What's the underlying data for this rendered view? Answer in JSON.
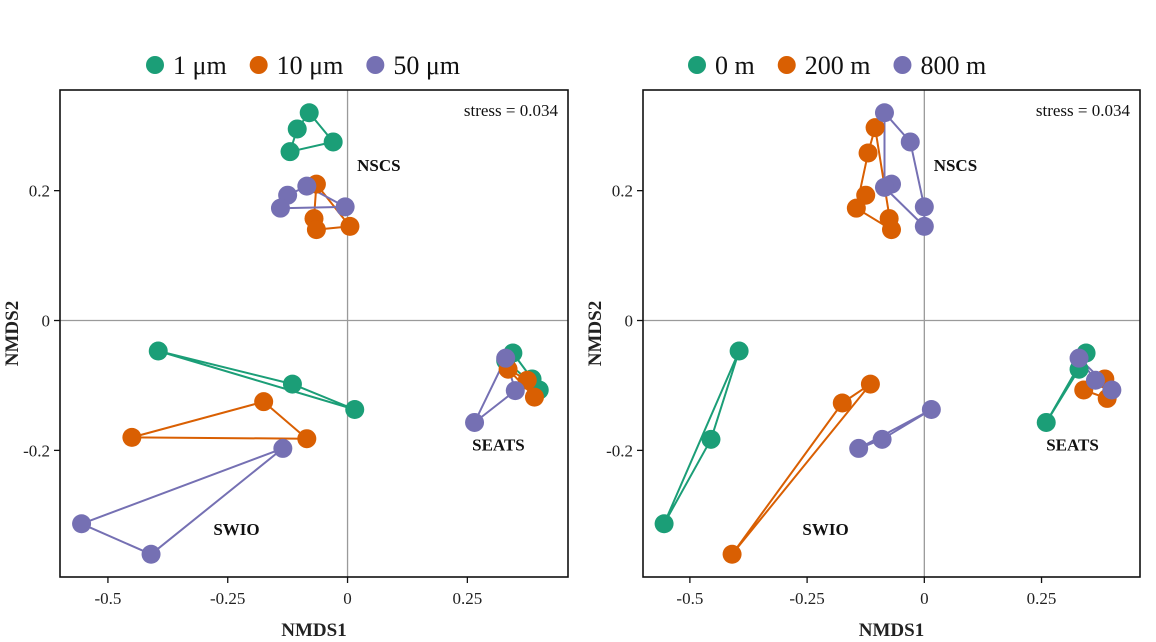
{
  "chart_data": [
    {
      "type": "scatter",
      "title": "",
      "xlabel": "NMDS1",
      "ylabel": "NMDS2",
      "xlim": [
        -0.6,
        0.46
      ],
      "ylim": [
        -0.395,
        0.355
      ],
      "x_ticks": [
        -0.5,
        -0.25,
        0,
        0.25
      ],
      "x_tick_labels": [
        "-0.5",
        "-0.25",
        "0",
        "0.25"
      ],
      "y_ticks": [
        -0.2,
        0,
        0.2
      ],
      "y_tick_labels": [
        "-0.2",
        "0",
        "0.2"
      ],
      "annotation": "stress = 0.034",
      "legend_position": "top",
      "grouping": "size fraction",
      "series": [
        {
          "name": "1 μm",
          "color": "#1b9e77",
          "regions": [
            {
              "region": "NSCS",
              "points": [
                [
                  -0.08,
                  0.32
                ],
                [
                  -0.105,
                  0.295
                ],
                [
                  -0.03,
                  0.275
                ],
                [
                  -0.12,
                  0.26
                ]
              ]
            },
            {
              "region": "SWIO",
              "points": [
                [
                  -0.395,
                  -0.047
                ],
                [
                  -0.115,
                  -0.098
                ],
                [
                  0.015,
                  -0.137
                ]
              ]
            },
            {
              "region": "SEATS",
              "points": [
                [
                  0.345,
                  -0.05
                ],
                [
                  0.385,
                  -0.09
                ],
                [
                  0.4,
                  -0.107
                ],
                [
                  0.33,
                  -0.062
                ]
              ]
            }
          ]
        },
        {
          "name": "10 μm",
          "color": "#d95f02",
          "regions": [
            {
              "region": "NSCS",
              "points": [
                [
                  -0.065,
                  0.21
                ],
                [
                  -0.07,
                  0.157
                ],
                [
                  -0.065,
                  0.14
                ],
                [
                  0.005,
                  0.145
                ]
              ]
            },
            {
              "region": "SWIO",
              "points": [
                [
                  -0.175,
                  -0.125
                ],
                [
                  -0.45,
                  -0.18
                ],
                [
                  -0.085,
                  -0.182
                ]
              ]
            },
            {
              "region": "SEATS",
              "points": [
                [
                  0.335,
                  -0.075
                ],
                [
                  0.375,
                  -0.092
                ],
                [
                  0.39,
                  -0.118
                ]
              ]
            }
          ]
        },
        {
          "name": "50 μm",
          "color": "#7570b3",
          "regions": [
            {
              "region": "NSCS",
              "points": [
                [
                  -0.085,
                  0.207
                ],
                [
                  -0.125,
                  0.193
                ],
                [
                  -0.14,
                  0.173
                ],
                [
                  -0.005,
                  0.175
                ]
              ]
            },
            {
              "region": "SWIO",
              "points": [
                [
                  -0.555,
                  -0.313
                ],
                [
                  -0.41,
                  -0.36
                ],
                [
                  -0.135,
                  -0.197
                ]
              ]
            },
            {
              "region": "SEATS",
              "points": [
                [
                  0.33,
                  -0.058
                ],
                [
                  0.265,
                  -0.157
                ],
                [
                  0.35,
                  -0.108
                ]
              ]
            }
          ]
        }
      ],
      "region_labels": [
        {
          "text": "NSCS",
          "x": 0.02,
          "y": 0.23
        },
        {
          "text": "SEATS",
          "x": 0.26,
          "y": -0.2
        },
        {
          "text": "SWIO",
          "x": -0.28,
          "y": -0.33
        }
      ]
    },
    {
      "type": "scatter",
      "title": "",
      "xlabel": "NMDS1",
      "ylabel": "NMDS2",
      "xlim": [
        -0.6,
        0.46
      ],
      "ylim": [
        -0.395,
        0.355
      ],
      "x_ticks": [
        -0.5,
        -0.25,
        0,
        0.25
      ],
      "x_tick_labels": [
        "-0.5",
        "-0.25",
        "0",
        "0.25"
      ],
      "y_ticks": [
        -0.2,
        0,
        0.2
      ],
      "y_tick_labels": [
        "-0.2",
        "0",
        "0.2"
      ],
      "annotation": "stress = 0.034",
      "legend_position": "top",
      "grouping": "depth",
      "series": [
        {
          "name": "0 m",
          "color": "#1b9e77",
          "regions": [
            {
              "region": "SWIO",
              "points": [
                [
                  -0.395,
                  -0.047
                ],
                [
                  -0.455,
                  -0.183
                ],
                [
                  -0.555,
                  -0.313
                ]
              ]
            },
            {
              "region": "SEATS",
              "points": [
                [
                  0.345,
                  -0.05
                ],
                [
                  0.33,
                  -0.075
                ],
                [
                  0.26,
                  -0.157
                ]
              ]
            }
          ]
        },
        {
          "name": "200 m",
          "color": "#d95f02",
          "regions": [
            {
              "region": "NSCS",
              "points": [
                [
                  -0.105,
                  0.297
                ],
                [
                  -0.12,
                  0.258
                ],
                [
                  -0.125,
                  0.193
                ],
                [
                  -0.145,
                  0.173
                ],
                [
                  -0.075,
                  0.157
                ],
                [
                  -0.07,
                  0.14
                ]
              ]
            },
            {
              "region": "SWIO",
              "points": [
                [
                  -0.115,
                  -0.098
                ],
                [
                  -0.175,
                  -0.127
                ],
                [
                  -0.41,
                  -0.36
                ]
              ]
            },
            {
              "region": "SEATS",
              "points": [
                [
                  0.385,
                  -0.09
                ],
                [
                  0.34,
                  -0.107
                ],
                [
                  0.39,
                  -0.12
                ]
              ]
            }
          ]
        },
        {
          "name": "800 m",
          "color": "#7570b3",
          "regions": [
            {
              "region": "NSCS",
              "points": [
                [
                  -0.085,
                  0.32
                ],
                [
                  -0.03,
                  0.275
                ],
                [
                  -0.07,
                  0.21
                ],
                [
                  -0.085,
                  0.205
                ],
                [
                  0,
                  0.175
                ],
                [
                  0,
                  0.145
                ]
              ]
            },
            {
              "region": "SWIO",
              "points": [
                [
                  0.015,
                  -0.137
                ],
                [
                  -0.09,
                  -0.183
                ],
                [
                  -0.14,
                  -0.197
                ]
              ]
            },
            {
              "region": "SEATS",
              "points": [
                [
                  0.33,
                  -0.058
                ],
                [
                  0.365,
                  -0.092
                ],
                [
                  0.4,
                  -0.107
                ]
              ]
            }
          ]
        }
      ],
      "region_labels": [
        {
          "text": "NSCS",
          "x": 0.02,
          "y": 0.23
        },
        {
          "text": "SEATS",
          "x": 0.26,
          "y": -0.2
        },
        {
          "text": "SWIO",
          "x": -0.26,
          "y": -0.33
        }
      ]
    }
  ]
}
